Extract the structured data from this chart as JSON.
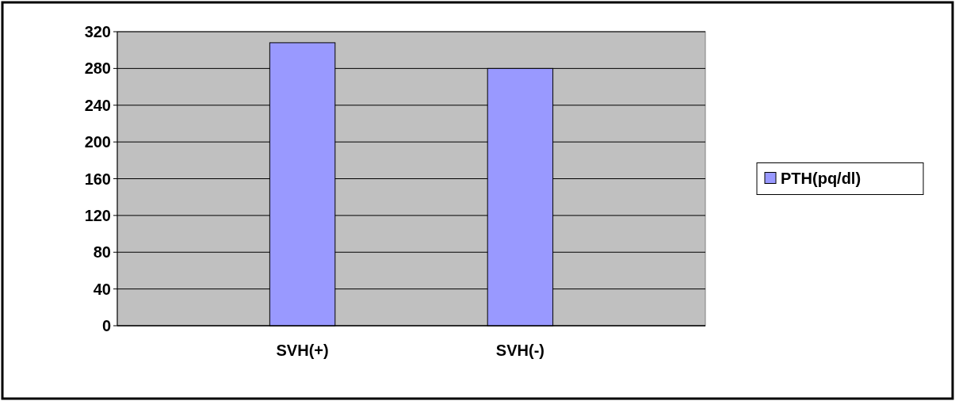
{
  "chart_data": {
    "type": "bar",
    "categories": [
      "SVH(+)",
      "SVH(-)"
    ],
    "series": [
      {
        "name": "PTH(pq/dl)",
        "color": "#9999ff",
        "values": [
          308,
          280
        ]
      }
    ],
    "ylim": [
      0,
      320
    ],
    "yticks": [
      0,
      40,
      80,
      120,
      160,
      200,
      240,
      280,
      320
    ],
    "grid": "y",
    "legend": "right"
  }
}
